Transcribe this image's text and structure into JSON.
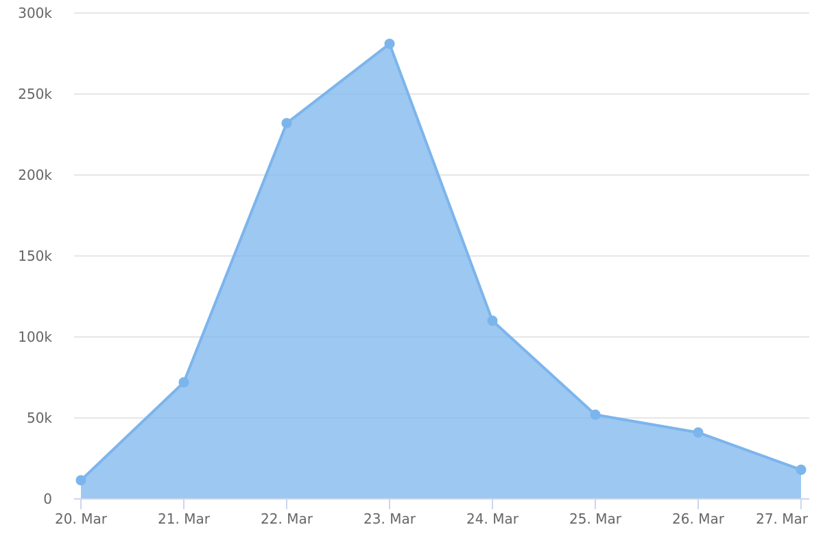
{
  "chart_data": {
    "type": "area",
    "title": "",
    "xlabel": "",
    "ylabel": "",
    "categories": [
      "20. Mar",
      "21. Mar",
      "22. Mar",
      "23. Mar",
      "24. Mar",
      "25. Mar",
      "26. Mar",
      "27. Mar"
    ],
    "series": [
      {
        "values": [
          11500,
          72000,
          232000,
          281000,
          110000,
          52000,
          41000,
          18000
        ]
      }
    ],
    "ylim": [
      0,
      300000
    ],
    "y_ticks": [
      0,
      50000,
      100000,
      150000,
      200000,
      250000,
      300000
    ],
    "y_tick_labels": [
      "0",
      "50k",
      "100k",
      "150k",
      "200k",
      "250k",
      "300k"
    ],
    "grid": true,
    "legend": "none",
    "colors": {
      "line": "#7cb5ec",
      "fill": "#7cb5ec",
      "grid": "#e6e6e6",
      "axis": "#ccd6eb",
      "tick_text": "#666666"
    }
  }
}
